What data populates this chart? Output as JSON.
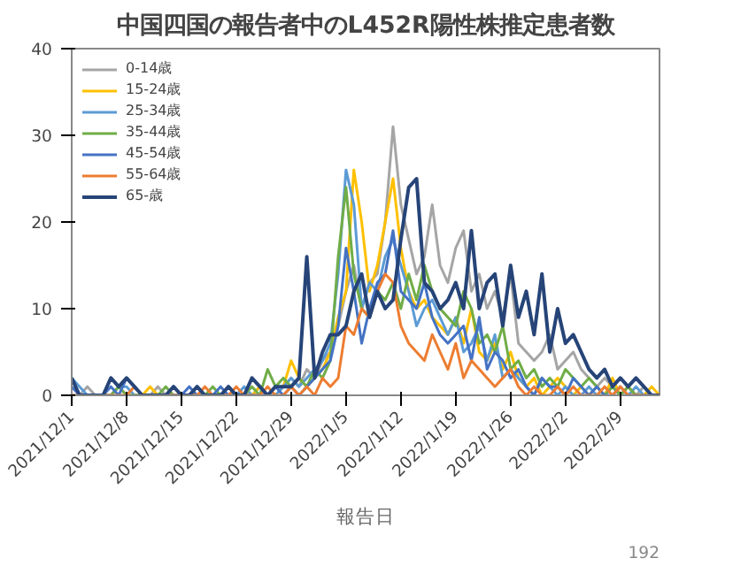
{
  "chart_data": {
    "type": "line",
    "title": "中国四国の報告者中のL452R陽性株推定患者数",
    "xlabel": "報告日",
    "annotations": [
      "192"
    ],
    "xlim": [
      "2021-12-01",
      "2022-02-14"
    ],
    "xticks": [
      {
        "value": "2021-12-01",
        "label": "2021/12/1"
      },
      {
        "value": "2021-12-08",
        "label": "2021/12/8"
      },
      {
        "value": "2021-12-15",
        "label": "2021/12/15"
      },
      {
        "value": "2021-12-22",
        "label": "2021/12/22"
      },
      {
        "value": "2021-12-29",
        "label": "2021/12/29"
      },
      {
        "value": "2022-01-05",
        "label": "2022/1/5"
      },
      {
        "value": "2022-01-12",
        "label": "2022/1/12"
      },
      {
        "value": "2022-01-19",
        "label": "2022/1/19"
      },
      {
        "value": "2022-01-26",
        "label": "2022/1/26"
      },
      {
        "value": "2022-02-02",
        "label": "2022/2/2"
      },
      {
        "value": "2022-02-09",
        "label": "2022/2/9"
      }
    ],
    "ylim": [
      0,
      40
    ],
    "yticks": [
      0,
      10,
      20,
      30,
      40
    ],
    "grid": false,
    "legend": "top left",
    "marker": "none",
    "line_style": "solid",
    "x": [
      "2021-12-01",
      "2021-12-02",
      "2021-12-03",
      "2021-12-04",
      "2021-12-05",
      "2021-12-06",
      "2021-12-07",
      "2021-12-08",
      "2021-12-09",
      "2021-12-10",
      "2021-12-11",
      "2021-12-12",
      "2021-12-13",
      "2021-12-14",
      "2021-12-15",
      "2021-12-16",
      "2021-12-17",
      "2021-12-18",
      "2021-12-19",
      "2021-12-20",
      "2021-12-21",
      "2021-12-22",
      "2021-12-23",
      "2021-12-24",
      "2021-12-25",
      "2021-12-26",
      "2021-12-27",
      "2021-12-28",
      "2021-12-29",
      "2021-12-30",
      "2021-12-31",
      "2022-01-01",
      "2022-01-02",
      "2022-01-03",
      "2022-01-04",
      "2022-01-05",
      "2022-01-06",
      "2022-01-07",
      "2022-01-08",
      "2022-01-09",
      "2022-01-10",
      "2022-01-11",
      "2022-01-12",
      "2022-01-13",
      "2022-01-14",
      "2022-01-15",
      "2022-01-16",
      "2022-01-17",
      "2022-01-18",
      "2022-01-19",
      "2022-01-20",
      "2022-01-21",
      "2022-01-22",
      "2022-01-23",
      "2022-01-24",
      "2022-01-25",
      "2022-01-26",
      "2022-01-27",
      "2022-01-28",
      "2022-01-29",
      "2022-01-30",
      "2022-01-31",
      "2022-02-01",
      "2022-02-02",
      "2022-02-03",
      "2022-02-04",
      "2022-02-05",
      "2022-02-06",
      "2022-02-07",
      "2022-02-08",
      "2022-02-09",
      "2022-02-10",
      "2022-02-11",
      "2022-02-12",
      "2022-02-13",
      "2022-02-14"
    ],
    "series": [
      {
        "name": "0-14歳",
        "color": "#a5a5a5",
        "values": [
          0,
          0,
          1,
          0,
          0,
          0,
          1,
          0,
          0,
          0,
          0,
          1,
          0,
          0,
          0,
          0,
          1,
          0,
          0,
          0,
          1,
          0,
          0,
          0,
          1,
          0,
          1,
          1,
          2,
          1,
          3,
          2,
          4,
          5,
          8,
          12,
          15,
          10,
          13,
          14,
          20,
          31,
          22,
          18,
          14,
          16,
          22,
          15,
          13,
          17,
          19,
          12,
          14,
          10,
          12,
          9,
          14,
          6,
          5,
          4,
          5,
          7,
          3,
          4,
          5,
          3,
          2,
          1,
          2,
          1,
          0,
          1,
          0,
          1,
          0,
          0
        ]
      },
      {
        "name": "15-24歳",
        "color": "#ffc000",
        "values": [
          null,
          null,
          null,
          null,
          null,
          null,
          null,
          0,
          0,
          0,
          1,
          0,
          0,
          0,
          0,
          0,
          0,
          0,
          0,
          0,
          0,
          0,
          0,
          0,
          1,
          0,
          0,
          1,
          4,
          2,
          1,
          2,
          3,
          5,
          9,
          12,
          26,
          20,
          12,
          15,
          20,
          25,
          17,
          12,
          10,
          11,
          9,
          8,
          7,
          9,
          6,
          10,
          5,
          4,
          6,
          3,
          5,
          2,
          1,
          2,
          0,
          1,
          2,
          1,
          0,
          1,
          0,
          1,
          0,
          2,
          0,
          1,
          0,
          0,
          1,
          0
        ]
      },
      {
        "name": "25-34歳",
        "color": "#5b9bd5",
        "values": [
          2,
          1,
          0,
          0,
          0,
          0,
          1,
          1,
          0,
          0,
          0,
          0,
          0,
          0,
          0,
          0,
          0,
          0,
          0,
          0,
          0,
          0,
          1,
          0,
          0,
          0,
          0,
          1,
          2,
          1,
          2,
          3,
          4,
          6,
          14,
          26,
          22,
          10,
          13,
          12,
          16,
          18,
          15,
          12,
          8,
          10,
          11,
          9,
          7,
          9,
          5,
          6,
          8,
          4,
          7,
          2,
          3,
          2,
          1,
          0,
          2,
          1,
          0,
          1,
          0,
          0,
          1,
          0,
          0,
          1,
          0,
          0,
          1,
          0,
          0,
          0
        ]
      },
      {
        "name": "35-44歳",
        "color": "#70ad47",
        "values": [
          null,
          null,
          null,
          0,
          0,
          0,
          1,
          0,
          0,
          0,
          0,
          0,
          1,
          0,
          0,
          0,
          0,
          0,
          1,
          0,
          0,
          0,
          0,
          1,
          0,
          3,
          1,
          2,
          1,
          2,
          1,
          3,
          2,
          4,
          16,
          24,
          14,
          10,
          9,
          12,
          11,
          13,
          10,
          14,
          11,
          15,
          12,
          10,
          9,
          8,
          12,
          10,
          6,
          7,
          5,
          8,
          3,
          4,
          2,
          3,
          1,
          2,
          1,
          3,
          2,
          1,
          2,
          1,
          0,
          1,
          0,
          1,
          0,
          0,
          0,
          0
        ]
      },
      {
        "name": "45-54歳",
        "color": "#4472c4",
        "values": [
          1,
          0,
          0,
          0,
          0,
          1,
          0,
          2,
          1,
          0,
          0,
          0,
          0,
          0,
          0,
          1,
          0,
          0,
          0,
          1,
          0,
          0,
          0,
          0,
          0,
          0,
          1,
          0,
          1,
          0,
          1,
          2,
          3,
          4,
          8,
          17,
          12,
          6,
          10,
          13,
          14,
          19,
          12,
          11,
          10,
          13,
          9,
          7,
          6,
          7,
          8,
          4,
          9,
          3,
          5,
          4,
          2,
          3,
          1,
          0,
          2,
          1,
          1,
          0,
          2,
          1,
          0,
          1,
          0,
          0,
          1,
          0,
          0,
          0,
          0,
          0
        ]
      },
      {
        "name": "55-64歳",
        "color": "#ed7d31",
        "values": [
          0,
          0,
          0,
          0,
          0,
          0,
          0,
          0,
          1,
          0,
          0,
          0,
          0,
          0,
          0,
          0,
          0,
          1,
          0,
          0,
          0,
          1,
          0,
          0,
          0,
          1,
          0,
          0,
          1,
          0,
          1,
          0,
          2,
          1,
          2,
          8,
          7,
          10,
          9,
          12,
          14,
          13,
          8,
          6,
          5,
          4,
          7,
          5,
          3,
          6,
          2,
          4,
          3,
          2,
          1,
          2,
          3,
          1,
          0,
          1,
          0,
          0,
          1,
          0,
          1,
          0,
          0,
          0,
          1,
          0,
          1,
          0,
          0,
          0,
          0,
          0
        ]
      },
      {
        "name": "65-歳",
        "color": "#264478",
        "values": [
          2,
          0,
          0,
          0,
          0,
          2,
          1,
          2,
          1,
          0,
          0,
          0,
          0,
          1,
          0,
          0,
          1,
          0,
          0,
          0,
          1,
          0,
          0,
          2,
          1,
          0,
          1,
          1,
          1,
          2,
          16,
          2,
          5,
          7,
          7,
          8,
          12,
          14,
          9,
          12,
          10,
          11,
          18,
          24,
          25,
          13,
          12,
          10,
          11,
          13,
          10,
          19,
          10,
          13,
          14,
          8,
          15,
          9,
          12,
          7,
          14,
          5,
          10,
          6,
          7,
          5,
          3,
          2,
          3,
          1,
          2,
          1,
          2,
          1,
          0,
          0
        ]
      }
    ]
  }
}
